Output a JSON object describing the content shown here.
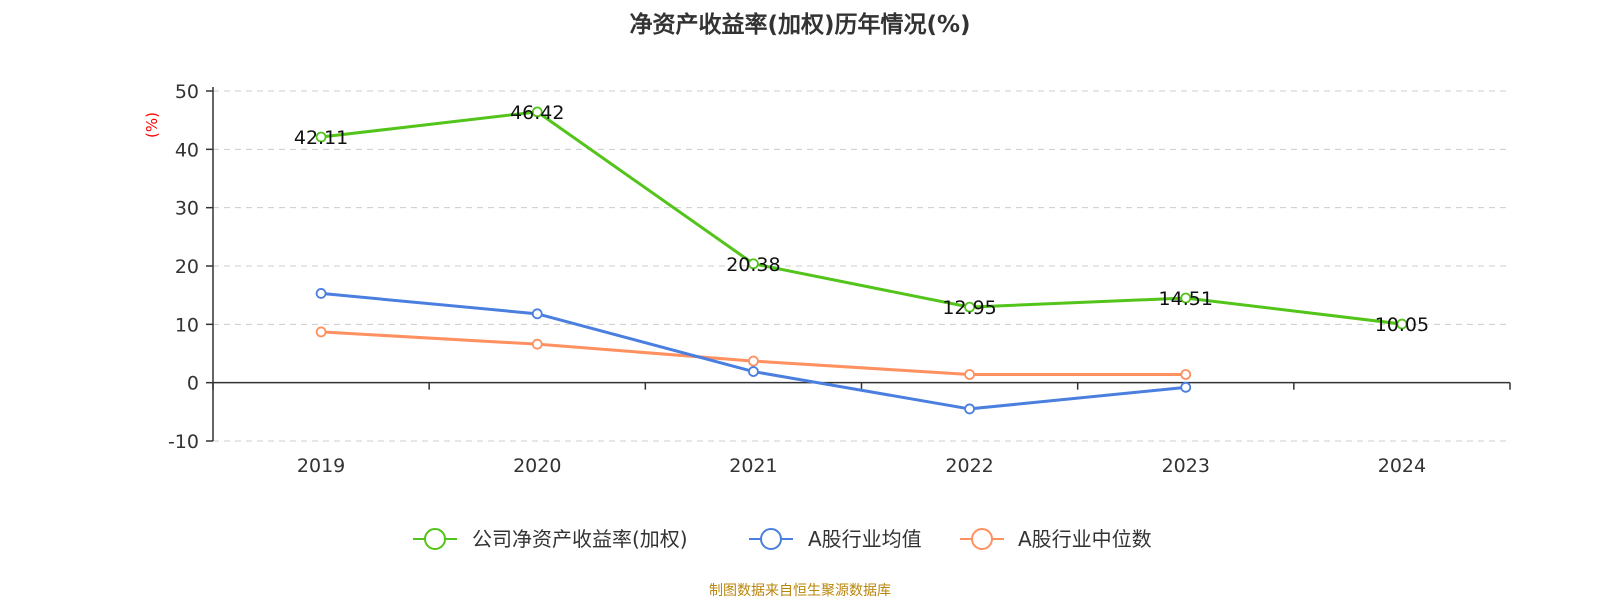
{
  "chart_data": {
    "type": "line",
    "title": "净资产收益率(加权)历年情况(%)",
    "ylabel": "(%)",
    "xlabel": "",
    "categories": [
      "2019",
      "2020",
      "2021",
      "2022",
      "2023",
      "2024"
    ],
    "ylim": [
      -10,
      50
    ],
    "yticks": [
      50,
      40,
      30,
      20,
      10,
      0,
      -10
    ],
    "grid": true,
    "legend_position": "bottom",
    "series": [
      {
        "name": "公司净资产收益率(加权)",
        "color": "#52c41a",
        "values": [
          42.11,
          46.42,
          20.38,
          12.95,
          14.51,
          10.05
        ],
        "labels": [
          "42.11",
          "46.42",
          "20.38",
          "12.95",
          "14.51",
          "10.05"
        ],
        "show_labels": true
      },
      {
        "name": "A股行业均值",
        "color": "#4a7fe0",
        "values": [
          15.3,
          11.8,
          1.9,
          -4.5,
          -0.8,
          null
        ],
        "show_labels": false
      },
      {
        "name": "A股行业中位数",
        "color": "#ff9060",
        "values": [
          8.7,
          6.6,
          3.7,
          1.4,
          1.4,
          null
        ],
        "show_labels": false
      }
    ]
  },
  "source_note": "制图数据来自恒生聚源数据库",
  "ylabel_color": "#ff0000"
}
